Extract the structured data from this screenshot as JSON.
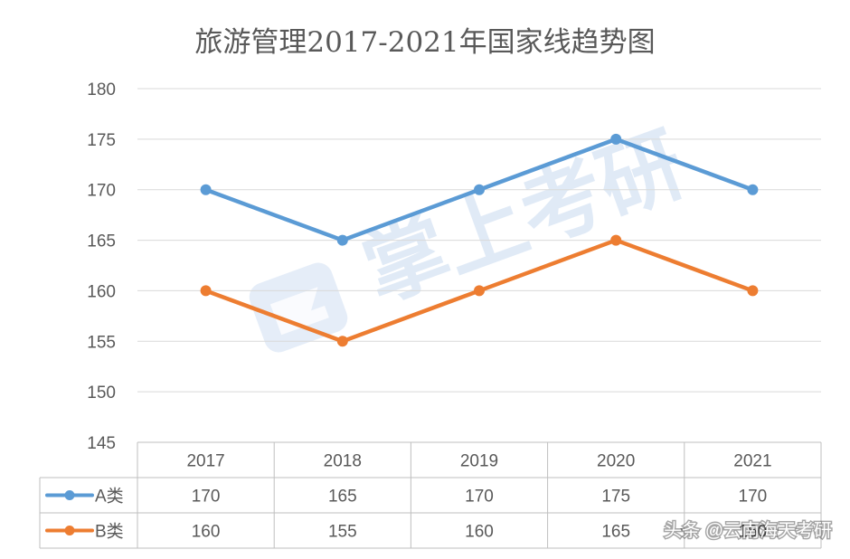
{
  "chart_data": {
    "type": "line",
    "title": "旅游管理2017-2021年国家线趋势图",
    "xlabel": "",
    "ylabel": "",
    "categories": [
      "2017",
      "2018",
      "2019",
      "2020",
      "2021"
    ],
    "ylim": [
      145,
      180
    ],
    "yticks": [
      145,
      150,
      155,
      160,
      165,
      170,
      175,
      180
    ],
    "grid": true,
    "legend": "data table (bottom)",
    "series": [
      {
        "name": "A类",
        "color": "#5b9bd5",
        "values": [
          170,
          165,
          170,
          175,
          170
        ]
      },
      {
        "name": "B类",
        "color": "#ed7d31",
        "values": [
          160,
          155,
          160,
          165,
          160
        ]
      }
    ]
  },
  "watermark": {
    "text": "掌上考研",
    "color": "#dde8f6"
  },
  "credit": {
    "text": "头条 @云南海天考研",
    "color": "#ffffff"
  },
  "colors": {
    "title": "#595959",
    "axis_text": "#595959",
    "gridline": "#d9d9d9",
    "table_border": "#bfbfbf"
  }
}
